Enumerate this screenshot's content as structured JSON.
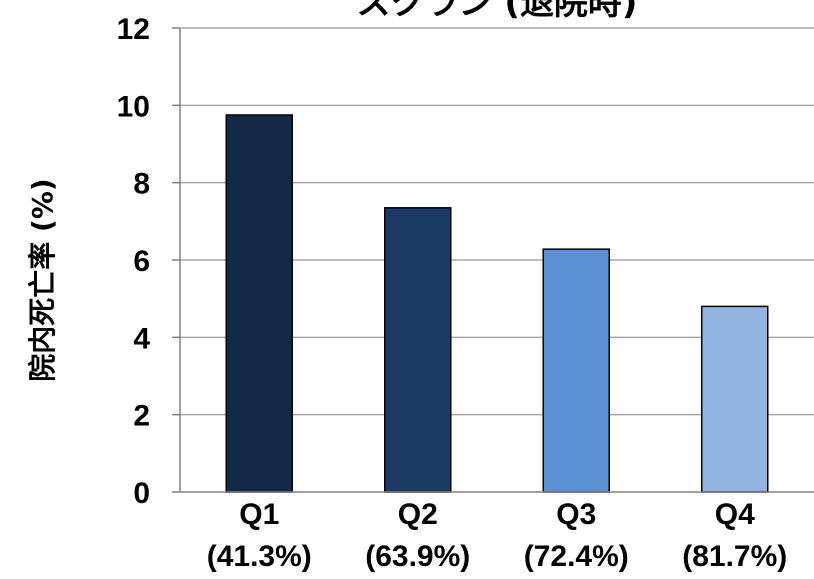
{
  "chart_data": {
    "type": "bar",
    "title": "スクラン (退院時)",
    "ylabel": "院内死亡率 (%)",
    "xlabel": "",
    "ylim": [
      0,
      12
    ],
    "yticks": [
      0,
      2,
      4,
      6,
      8,
      10,
      12
    ],
    "ytick_labels": [
      "0",
      "2",
      "4",
      "6",
      "8",
      "10",
      "12"
    ],
    "grid": true,
    "categories": [
      "Q1",
      "Q2",
      "Q3",
      "Q4"
    ],
    "category_sublabels": [
      "(41.3%)",
      "(63.9%)",
      "(72.4%)",
      "(81.7%)"
    ],
    "values": [
      9.75,
      7.35,
      6.28,
      4.8
    ],
    "colors": [
      "#152a47",
      "#1c3a63",
      "#5990d6",
      "#92b4e3"
    ],
    "grid_color": "#a6a6a6",
    "axis_color": "#808080",
    "bar_edge_color": "#000000"
  }
}
